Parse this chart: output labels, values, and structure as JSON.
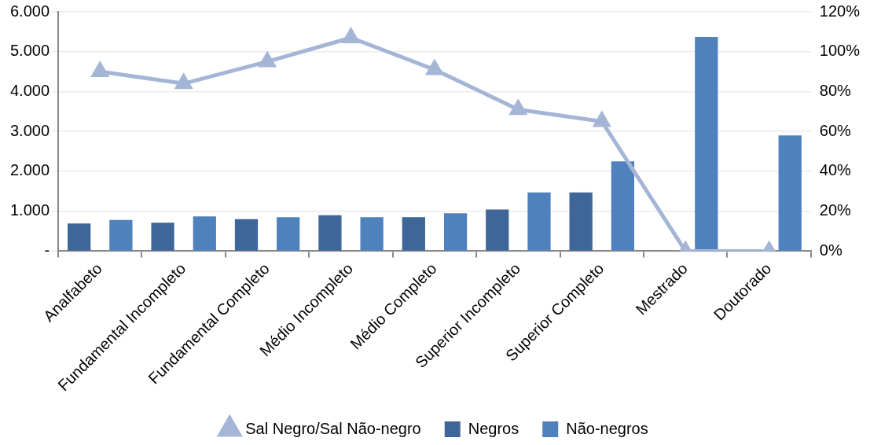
{
  "chart_data": {
    "type": "bar",
    "categories": [
      "Analfabeto",
      "Fundamental Incompleto",
      "Fundamental Completo",
      "Médio Incompleto",
      "Médio Completo",
      "Superior Incompleto",
      "Superior Completo",
      "Mestrado",
      "Doutorado"
    ],
    "series": [
      {
        "name": "Negros",
        "color": "#3f6698",
        "values": [
          690,
          710,
          800,
          900,
          850,
          1040,
          1470,
          0,
          0
        ]
      },
      {
        "name": "Não-negros",
        "color": "#4f81bd",
        "values": [
          780,
          870,
          850,
          850,
          950,
          1470,
          2250,
          5370,
          2900
        ]
      },
      {
        "name": "Sal Negro/Sal Não-negro",
        "type": "line",
        "axis": "y2",
        "color": "#a5b5d6",
        "values": [
          90,
          84,
          95,
          107,
          91,
          71,
          65,
          0,
          0
        ]
      }
    ],
    "ylim": [
      0,
      6000
    ],
    "yticks": [
      {
        "value": 0,
        "label": "-"
      },
      {
        "value": 1000,
        "label": "1.000"
      },
      {
        "value": 2000,
        "label": "2.000"
      },
      {
        "value": 3000,
        "label": "3.000"
      },
      {
        "value": 4000,
        "label": "4.000"
      },
      {
        "value": 5000,
        "label": "5.000"
      },
      {
        "value": 6000,
        "label": "6.000"
      }
    ],
    "y2lim": [
      0,
      120
    ],
    "y2ticks": [
      {
        "value": 0,
        "label": "0%"
      },
      {
        "value": 20,
        "label": "20%"
      },
      {
        "value": 40,
        "label": "40%"
      },
      {
        "value": 60,
        "label": "60%"
      },
      {
        "value": 80,
        "label": "80%"
      },
      {
        "value": 100,
        "label": "100%"
      },
      {
        "value": 120,
        "label": "120%"
      }
    ],
    "grid": "y",
    "legend": "bottom",
    "marker": "triangle",
    "line_style": "solid"
  }
}
